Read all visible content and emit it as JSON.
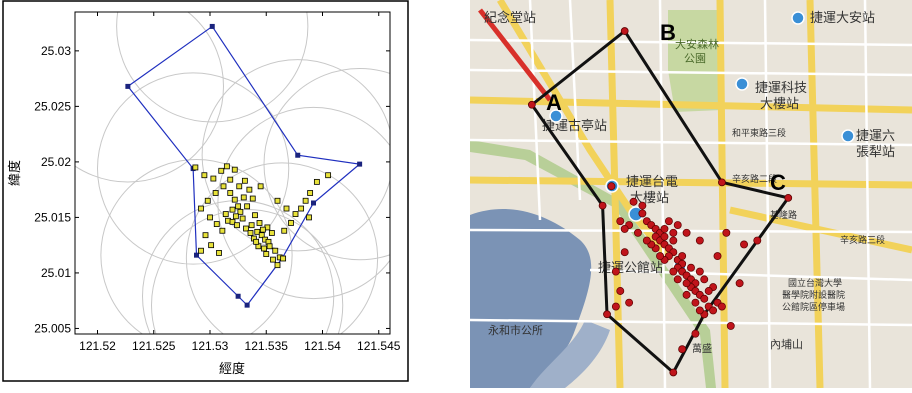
{
  "chart_data": [
    {
      "type": "scatter",
      "title": "",
      "xlabel": "經度",
      "ylabel": "緯度",
      "xlim": [
        121.518,
        121.546
      ],
      "ylim": [
        25.0045,
        25.0335
      ],
      "xticks": [
        "121.52",
        "121.525",
        "121.53",
        "121.535",
        "121.54",
        "121.545"
      ],
      "xtick_values": [
        121.52,
        121.525,
        121.53,
        121.535,
        121.54,
        121.545
      ],
      "yticks": [
        "25.03",
        "25.025",
        "25.02",
        "25.015",
        "25.01",
        "25.005"
      ],
      "ytick_values": [
        25.03,
        25.025,
        25.02,
        25.015,
        25.01,
        25.005
      ],
      "grid": false,
      "colors": {
        "boundary": "#1f2fbf",
        "vertex": "#1a237e",
        "point_fill": "#e8e23a",
        "circles": "#c8c8c8"
      },
      "series": [
        {
          "kind": "boundary-polygon",
          "points": [
            [
              121.5302,
              25.0322
            ],
            [
              121.5227,
              25.0268
            ],
            [
              121.5285,
              25.0194
            ],
            [
              121.5288,
              25.0116
            ],
            [
              121.5325,
              25.0079
            ],
            [
              121.5333,
              25.0071
            ],
            [
              121.5364,
              25.0113
            ],
            [
              121.5392,
              25.0163
            ],
            [
              121.5433,
              25.0198
            ],
            [
              121.5378,
              25.0206
            ],
            [
              121.5302,
              25.0322
            ]
          ]
        },
        {
          "kind": "points",
          "points": [
            [
              121.5287,
              25.0195
            ],
            [
              121.5295,
              25.0188
            ],
            [
              121.5303,
              25.0185
            ],
            [
              121.531,
              25.0192
            ],
            [
              121.5315,
              25.0196
            ],
            [
              121.5322,
              25.0193
            ],
            [
              121.5318,
              25.0184
            ],
            [
              121.5312,
              25.0178
            ],
            [
              121.5305,
              25.0172
            ],
            [
              121.5298,
              25.0165
            ],
            [
              121.5292,
              25.0158
            ],
            [
              121.53,
              25.015
            ],
            [
              121.5306,
              25.0144
            ],
            [
              121.5311,
              25.0138
            ],
            [
              121.5296,
              25.0134
            ],
            [
              121.5301,
              25.0125
            ],
            [
              121.5292,
              25.012
            ],
            [
              121.5308,
              25.0118
            ],
            [
              121.5318,
              25.0172
            ],
            [
              121.5322,
              25.0166
            ],
            [
              121.5325,
              25.016
            ],
            [
              121.5327,
              25.0155
            ],
            [
              121.532,
              25.0157
            ],
            [
              121.5323,
              25.0151
            ],
            [
              121.5329,
              25.0149
            ],
            [
              121.5333,
              25.016
            ],
            [
              121.533,
              25.0168
            ],
            [
              121.5326,
              25.0178
            ],
            [
              121.5331,
              25.0183
            ],
            [
              121.5335,
              25.0175
            ],
            [
              121.5338,
              25.0167
            ],
            [
              121.534,
              25.0152
            ],
            [
              121.5337,
              25.0143
            ],
            [
              121.5342,
              25.0137
            ],
            [
              121.5346,
              25.0134
            ],
            [
              121.5349,
              25.013
            ],
            [
              121.5352,
              25.0128
            ],
            [
              121.5355,
              25.0136
            ],
            [
              121.5351,
              25.0141
            ],
            [
              121.5344,
              25.0145
            ],
            [
              121.5339,
              25.0131
            ],
            [
              121.5343,
              25.0124
            ],
            [
              121.5348,
              25.0122
            ],
            [
              121.5358,
              25.012
            ],
            [
              121.5362,
              25.0114
            ],
            [
              121.5365,
              25.0113
            ],
            [
              121.5356,
              25.0112
            ],
            [
              121.536,
              25.0107
            ],
            [
              121.5366,
              25.0138
            ],
            [
              121.5372,
              25.0145
            ],
            [
              121.5376,
              25.0153
            ],
            [
              121.5381,
              25.0158
            ],
            [
              121.5385,
              25.0165
            ],
            [
              121.5389,
              25.0172
            ],
            [
              121.5395,
              25.0182
            ],
            [
              121.5405,
              25.0188
            ],
            [
              121.5388,
              25.015
            ],
            [
              121.5368,
              25.0158
            ],
            [
              121.536,
              25.0165
            ],
            [
              121.5345,
              25.0178
            ],
            [
              121.5316,
              25.0147
            ],
            [
              121.5314,
              25.0153
            ],
            [
              121.532,
              25.0146
            ],
            [
              121.5324,
              25.0143
            ],
            [
              121.5332,
              25.014
            ],
            [
              121.5336,
              25.0136
            ],
            [
              121.5341,
              25.0128
            ],
            [
              121.5347,
              25.0139
            ],
            [
              121.5353,
              25.0124
            ],
            [
              121.535,
              25.0117
            ]
          ]
        }
      ]
    }
  ],
  "map": {
    "vertex_labels": [
      "A",
      "B",
      "C"
    ],
    "place_labels": [
      "紀念堂站",
      "大安森林",
      "公園",
      "捷運大安站",
      "捷運科技",
      "大樓站",
      "捷運古亭站",
      "捷運六",
      "張犁站",
      "捷運台電",
      "大樓站",
      "捷運公館站",
      "永和市公所",
      "內埔山",
      "國立台灣大學",
      "醫學院附設醫院",
      "公館院區停車場",
      "萬盛",
      "和平東路三段",
      "辛亥路二段",
      "辛亥路三段",
      "基隆路"
    ],
    "colors": {
      "boundary": "#111111",
      "point": "#c0141b",
      "water": "#7b93b5",
      "roads": "#f2d25a",
      "park": "#c7d8a2",
      "land": "#e9e4da"
    },
    "boundary_points": [
      [
        0.14,
        0.27
      ],
      [
        0.35,
        0.08
      ],
      [
        0.57,
        0.47
      ],
      [
        0.72,
        0.51
      ],
      [
        0.53,
        0.81
      ],
      [
        0.46,
        0.96
      ],
      [
        0.31,
        0.81
      ],
      [
        0.3,
        0.53
      ],
      [
        0.14,
        0.27
      ]
    ],
    "points": [
      [
        0.32,
        0.48
      ],
      [
        0.37,
        0.52
      ],
      [
        0.39,
        0.55
      ],
      [
        0.4,
        0.57
      ],
      [
        0.41,
        0.58
      ],
      [
        0.42,
        0.59
      ],
      [
        0.43,
        0.6
      ],
      [
        0.42,
        0.61
      ],
      [
        0.43,
        0.62
      ],
      [
        0.44,
        0.63
      ],
      [
        0.45,
        0.64
      ],
      [
        0.46,
        0.65
      ],
      [
        0.45,
        0.66
      ],
      [
        0.44,
        0.67
      ],
      [
        0.43,
        0.66
      ],
      [
        0.42,
        0.64
      ],
      [
        0.41,
        0.63
      ],
      [
        0.4,
        0.62
      ],
      [
        0.44,
        0.61
      ],
      [
        0.46,
        0.62
      ],
      [
        0.47,
        0.67
      ],
      [
        0.48,
        0.68
      ],
      [
        0.47,
        0.69
      ],
      [
        0.48,
        0.7
      ],
      [
        0.49,
        0.71
      ],
      [
        0.5,
        0.72
      ],
      [
        0.51,
        0.73
      ],
      [
        0.5,
        0.74
      ],
      [
        0.51,
        0.75
      ],
      [
        0.52,
        0.76
      ],
      [
        0.53,
        0.77
      ],
      [
        0.54,
        0.79
      ],
      [
        0.55,
        0.8
      ],
      [
        0.53,
        0.81
      ],
      [
        0.52,
        0.8
      ],
      [
        0.51,
        0.78
      ],
      [
        0.49,
        0.76
      ],
      [
        0.49,
        0.73
      ],
      [
        0.47,
        0.72
      ],
      [
        0.46,
        0.7
      ],
      [
        0.48,
        0.66
      ],
      [
        0.5,
        0.69
      ],
      [
        0.52,
        0.7
      ],
      [
        0.53,
        0.72
      ],
      [
        0.55,
        0.74
      ],
      [
        0.54,
        0.75
      ],
      [
        0.56,
        0.78
      ],
      [
        0.57,
        0.79
      ],
      [
        0.38,
        0.6
      ],
      [
        0.36,
        0.58
      ],
      [
        0.34,
        0.57
      ],
      [
        0.35,
        0.65
      ],
      [
        0.33,
        0.7
      ],
      [
        0.34,
        0.75
      ],
      [
        0.36,
        0.78
      ],
      [
        0.33,
        0.79
      ],
      [
        0.35,
        0.59
      ],
      [
        0.39,
        0.53
      ],
      [
        0.45,
        0.57
      ],
      [
        0.47,
        0.58
      ],
      [
        0.49,
        0.6
      ],
      [
        0.52,
        0.62
      ],
      [
        0.58,
        0.6
      ],
      [
        0.62,
        0.63
      ],
      [
        0.65,
        0.62
      ],
      [
        0.56,
        0.66
      ],
      [
        0.61,
        0.73
      ],
      [
        0.59,
        0.84
      ],
      [
        0.48,
        0.9
      ],
      [
        0.51,
        0.86
      ],
      [
        0.44,
        0.59
      ],
      [
        0.46,
        0.6
      ]
    ]
  }
}
